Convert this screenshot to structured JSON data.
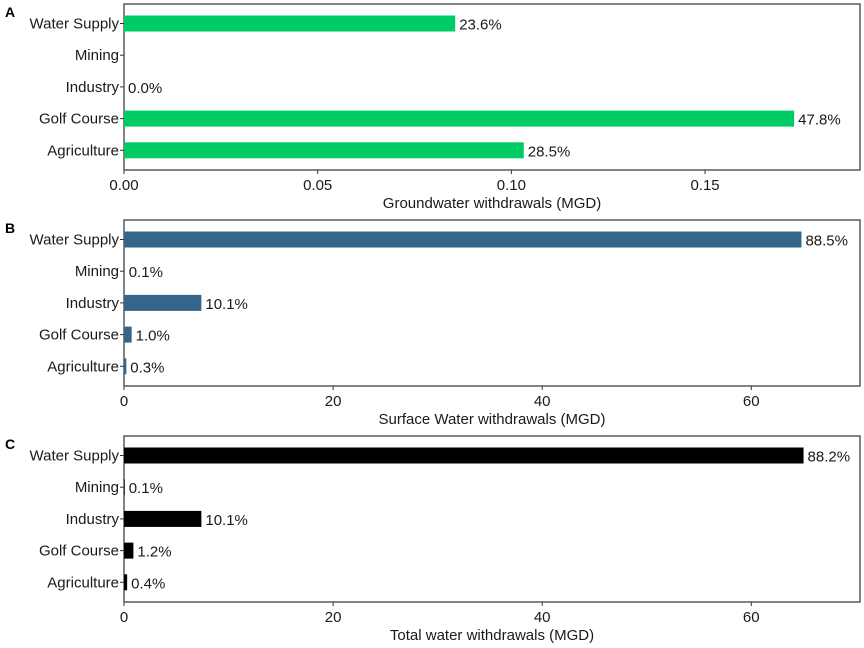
{
  "chart_data": [
    {
      "type": "bar",
      "orientation": "horizontal",
      "panel_label": "A",
      "categories": [
        "Water Supply",
        "Mining",
        "Industry",
        "Golf Course",
        "Agriculture"
      ],
      "values": [
        0.0855,
        0,
        0,
        0.173,
        0.1032
      ],
      "labels": [
        "23.6%",
        "",
        "0.0%",
        "47.8%",
        "28.5%"
      ],
      "xlabel": "Groundwater withdrawals (MGD)",
      "ylabel": "",
      "xlim": [
        0,
        0.19
      ],
      "xticks": [
        0,
        0.05,
        0.1,
        0.15
      ],
      "xtick_labels": [
        "0.00",
        "0.05",
        "0.10",
        "0.15"
      ],
      "color": "#00CC66",
      "grid": false
    },
    {
      "type": "bar",
      "orientation": "horizontal",
      "panel_label": "B",
      "categories": [
        "Water Supply",
        "Mining",
        "Industry",
        "Golf Course",
        "Agriculture"
      ],
      "values": [
        64.8,
        0.07,
        7.4,
        0.73,
        0.22
      ],
      "labels": [
        "88.5%",
        "0.1%",
        "10.1%",
        "1.0%",
        "0.3%"
      ],
      "xlabel": "Surface Water withdrawals (MGD)",
      "ylabel": "",
      "xlim": [
        0,
        70.4
      ],
      "xticks": [
        0,
        20,
        40,
        60
      ],
      "xtick_labels": [
        "0",
        "20",
        "40",
        "60"
      ],
      "color": "#336688",
      "grid": false
    },
    {
      "type": "bar",
      "orientation": "horizontal",
      "panel_label": "C",
      "categories": [
        "Water Supply",
        "Mining",
        "Industry",
        "Golf Course",
        "Agriculture"
      ],
      "values": [
        65.0,
        0.07,
        7.4,
        0.9,
        0.3
      ],
      "labels": [
        "88.2%",
        "0.1%",
        "10.1%",
        "1.2%",
        "0.4%"
      ],
      "xlabel": "Total water withdrawals (MGD)",
      "ylabel": "",
      "xlim": [
        0,
        70.4
      ],
      "xticks": [
        0,
        20,
        40,
        60
      ],
      "xtick_labels": [
        "0",
        "20",
        "40",
        "60"
      ],
      "color": "#000000",
      "grid": false
    }
  ]
}
